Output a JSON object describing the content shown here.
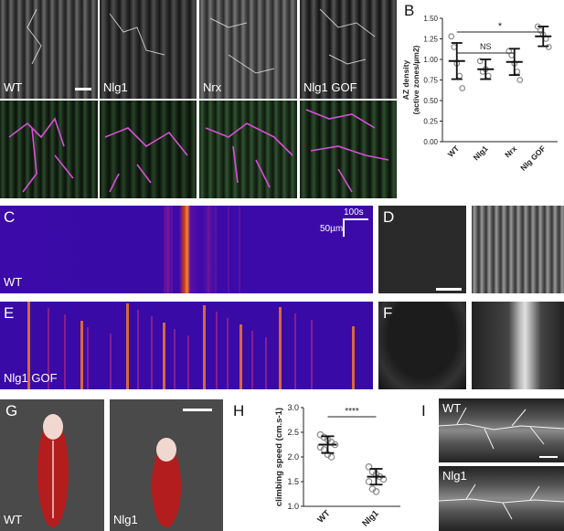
{
  "panels": {
    "A": {
      "letter": "A",
      "top_labels": [
        "WT",
        "Nlg1",
        "Nrx",
        "Nlg1 GOF"
      ]
    },
    "B": {
      "letter": "B",
      "sig_star": "*",
      "sig_ns": "NS"
    },
    "C": {
      "letter": "C",
      "label": "WT",
      "scale_time": "100s",
      "scale_len": "50µm"
    },
    "D": {
      "letter": "D"
    },
    "E": {
      "letter": "E",
      "label": "Nlg1 GOF"
    },
    "F": {
      "letter": "F"
    },
    "G": {
      "letter": "G",
      "labels": [
        "WT",
        "Nlg1"
      ]
    },
    "H": {
      "letter": "H",
      "sig": "****"
    },
    "I": {
      "letter": "I",
      "labels": [
        "WT",
        "Nlg1"
      ]
    }
  },
  "chart_data": [
    {
      "type": "scatter",
      "panel": "B",
      "ylabel": "AZ density\n(active zones/µm2)",
      "categories": [
        "WT",
        "Nlg1",
        "Nrx",
        "Nlg GOF"
      ],
      "ylim": [
        0.0,
        1.5
      ],
      "yticks": [
        "0.00",
        "0.25",
        "0.50",
        "0.75",
        "1.00",
        "1.25",
        "1.50"
      ],
      "ytick_values": [
        0,
        0.25,
        0.5,
        0.75,
        1.0,
        1.25,
        1.5
      ],
      "means": [
        0.98,
        0.88,
        0.97,
        1.28
      ],
      "sd": [
        0.22,
        0.12,
        0.16,
        0.12
      ],
      "points": [
        [
          1.28,
          1.15,
          0.95,
          0.8,
          0.65
        ],
        [
          0.98,
          0.85,
          0.88,
          0.8
        ],
        [
          1.1,
          1.05,
          0.95,
          0.85,
          0.75
        ],
        [
          1.4,
          1.35,
          1.3,
          1.25,
          1.15
        ]
      ]
    },
    {
      "type": "scatter",
      "panel": "H",
      "ylabel": "climbing speed (cm.s-1)",
      "categories": [
        "WT",
        "Nlg1"
      ],
      "ylim": [
        1.0,
        3.0
      ],
      "yticks": [
        "1.0",
        "1.5",
        "2.0",
        "2.5",
        "3.0"
      ],
      "ytick_values": [
        1.0,
        1.5,
        2.0,
        2.5,
        3.0
      ],
      "means": [
        2.25,
        1.6
      ],
      "sd": [
        0.17,
        0.16
      ],
      "points": [
        [
          2.45,
          2.4,
          2.35,
          2.3,
          2.25,
          2.2,
          2.15,
          2.05,
          2.0
        ],
        [
          1.8,
          1.7,
          1.65,
          1.6,
          1.55,
          1.5,
          1.35,
          1.3
        ]
      ]
    }
  ]
}
